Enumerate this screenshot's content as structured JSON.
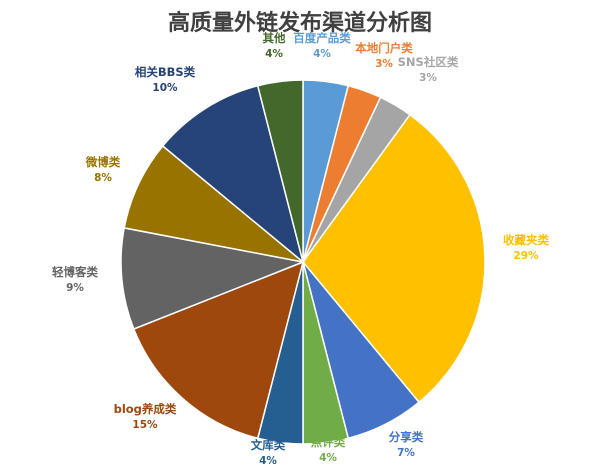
{
  "chart_data": {
    "type": "pie",
    "title": "高质量外链发布渠道分析图",
    "slices": [
      {
        "label": "百度产品类",
        "value": 4,
        "pct_label": "4%",
        "color": "#5B9BD5"
      },
      {
        "label": "本地门户类",
        "value": 3,
        "pct_label": "3%",
        "color": "#ED7D31"
      },
      {
        "label": "SNS社区类",
        "value": 3,
        "pct_label": "3%",
        "color": "#A5A5A5"
      },
      {
        "label": "收藏夹类",
        "value": 29,
        "pct_label": "29%",
        "color": "#FFC000"
      },
      {
        "label": "分享类",
        "value": 7,
        "pct_label": "7%",
        "color": "#4472C4"
      },
      {
        "label": "点评类",
        "value": 4,
        "pct_label": "4%",
        "color": "#70AD47"
      },
      {
        "label": "文库类",
        "value": 4,
        "pct_label": "4%",
        "color": "#255E91"
      },
      {
        "label": "blog养成类",
        "value": 15,
        "pct_label": "15%",
        "color": "#9E480E"
      },
      {
        "label": "轻博客类",
        "value": 9,
        "pct_label": "9%",
        "color": "#636363"
      },
      {
        "label": "微博类",
        "value": 8,
        "pct_label": "8%",
        "color": "#997300"
      },
      {
        "label": "相关BBS类",
        "value": 10,
        "pct_label": "10%",
        "color": "#264478"
      },
      {
        "label": "其他",
        "value": 4,
        "pct_label": "4%",
        "color": "#43682B"
      }
    ],
    "label_colors": {
      "百度产品类": "#5B9BD5",
      "本地门户类": "#ED7D31",
      "SNS社区类": "#A5A5A5",
      "收藏夹类": "#FFC000",
      "分享类": "#4472C4",
      "点评类": "#70AD47",
      "文库类": "#255E91",
      "blog养成类": "#9E480E",
      "轻博客类": "#636363",
      "微博类": "#997300",
      "相关BBS类": "#264478",
      "其他": "#43682B"
    }
  }
}
